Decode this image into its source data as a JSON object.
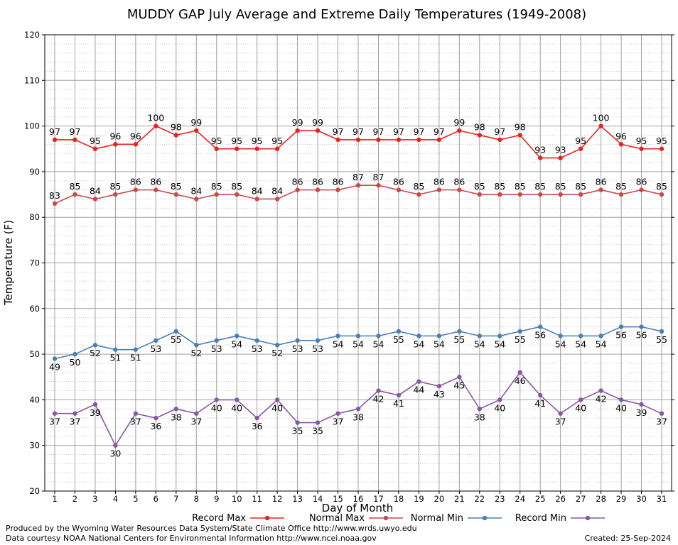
{
  "chart_data": {
    "type": "line",
    "title": "MUDDY GAP July Average and Extreme Daily Temperatures (1949-2008)",
    "xlabel": "Day of Month",
    "ylabel": "Temperature (F)",
    "ylim": [
      20,
      120
    ],
    "y_ticks": [
      20,
      30,
      40,
      50,
      60,
      70,
      80,
      90,
      100,
      110,
      120
    ],
    "categories": [
      1,
      2,
      3,
      4,
      5,
      6,
      7,
      8,
      9,
      10,
      11,
      12,
      13,
      14,
      15,
      16,
      17,
      18,
      19,
      20,
      21,
      22,
      23,
      24,
      25,
      26,
      27,
      28,
      29,
      30,
      31
    ],
    "grid": true,
    "legend_position": "bottom",
    "series": [
      {
        "name": "Record Max",
        "color": "#e8231f",
        "label_pos": "above",
        "values": [
          97,
          97,
          95,
          96,
          96,
          100,
          98,
          99,
          95,
          95,
          95,
          95,
          99,
          99,
          97,
          97,
          97,
          97,
          97,
          97,
          99,
          98,
          97,
          98,
          93,
          93,
          95,
          100,
          96,
          95,
          95
        ]
      },
      {
        "name": "Normal Max",
        "color": "#c84a4a",
        "label_pos": "above",
        "values": [
          83,
          85,
          84,
          85,
          86,
          86,
          85,
          84,
          85,
          85,
          84,
          84,
          86,
          86,
          86,
          87,
          87,
          86,
          85,
          86,
          86,
          85,
          85,
          85,
          85,
          85,
          85,
          86,
          85,
          86,
          85
        ]
      },
      {
        "name": "Normal Min",
        "color": "#4a7fb5",
        "label_pos": "below",
        "values": [
          49,
          50,
          52,
          51,
          51,
          53,
          55,
          52,
          53,
          54,
          53,
          52,
          53,
          53,
          54,
          54,
          54,
          55,
          54,
          54,
          55,
          54,
          54,
          55,
          56,
          54,
          54,
          54,
          56,
          56,
          55
        ]
      },
      {
        "name": "Record Min",
        "color": "#8659a3",
        "label_pos": "below",
        "values": [
          37,
          37,
          39,
          30,
          37,
          36,
          38,
          37,
          40,
          40,
          36,
          40,
          35,
          35,
          37,
          38,
          42,
          41,
          44,
          43,
          45,
          38,
          40,
          46,
          41,
          37,
          40,
          42,
          40,
          39,
          37
        ]
      }
    ]
  },
  "footer": {
    "line1": "Produced by the Wyoming Water Resources Data System/State Climate Office http://www.wrds.uwyo.edu",
    "line2": "Data courtesy NOAA National Centers for Environmental Information http://www.ncei.noaa.gov",
    "created": "Created:  25-Sep-2024"
  }
}
